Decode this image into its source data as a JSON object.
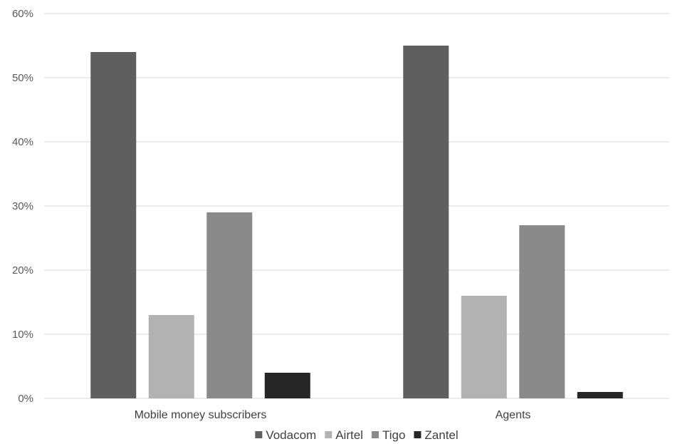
{
  "chart_data": {
    "type": "bar",
    "categories": [
      "Mobile money subscribers",
      "Agents"
    ],
    "series": [
      {
        "name": "Vodacom",
        "values": [
          54,
          55
        ],
        "color": "#5f5f5f"
      },
      {
        "name": "Airtel",
        "values": [
          13,
          16
        ],
        "color": "#b2b2b2"
      },
      {
        "name": "Tigo",
        "values": [
          29,
          27
        ],
        "color": "#8a8a8a"
      },
      {
        "name": "Zantel",
        "values": [
          4,
          1
        ],
        "color": "#262626"
      }
    ],
    "y_ticks": [
      "0%",
      "10%",
      "20%",
      "30%",
      "40%",
      "50%",
      "60%"
    ],
    "ylim": [
      0,
      60
    ],
    "y_unit": "%",
    "grid": true,
    "gridline_color": "#d9d9d9",
    "legend_position": "bottom"
  }
}
